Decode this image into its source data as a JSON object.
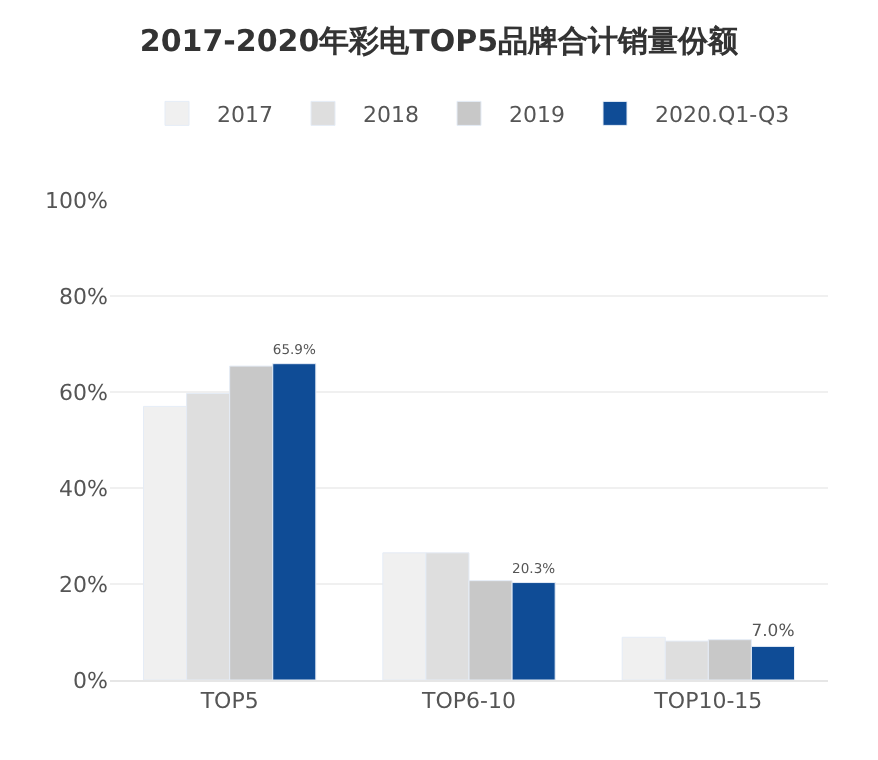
{
  "chart_data": {
    "type": "bar",
    "title": "2017-2020年彩电TOP5品牌合计销量份额",
    "categories": [
      "TOP5",
      "TOP6-10",
      "TOP10-15"
    ],
    "series": [
      {
        "name": "2017",
        "color": "#f0f0f0",
        "values": [
          57.0,
          26.5,
          8.9
        ]
      },
      {
        "name": "2018",
        "color": "#dedede",
        "values": [
          59.7,
          26.5,
          8.1
        ]
      },
      {
        "name": "2019",
        "color": "#c8c8c8",
        "values": [
          65.4,
          20.7,
          8.4
        ]
      },
      {
        "name": "2020.Q1-Q3",
        "color": "#0f4c96",
        "values": [
          65.9,
          20.3,
          7.0
        ],
        "value_labels": [
          "65.9%",
          "20.3%",
          "7.0%"
        ]
      }
    ],
    "ylim": [
      0,
      100
    ],
    "yticks": [
      {
        "value": 0,
        "label": "0%"
      },
      {
        "value": 20,
        "label": "20%"
      },
      {
        "value": 40,
        "label": "40%"
      },
      {
        "value": 60,
        "label": "60%"
      },
      {
        "value": 80,
        "label": "80%"
      },
      {
        "value": 100,
        "label": "100%"
      }
    ],
    "grid": "y",
    "legend": "top"
  }
}
